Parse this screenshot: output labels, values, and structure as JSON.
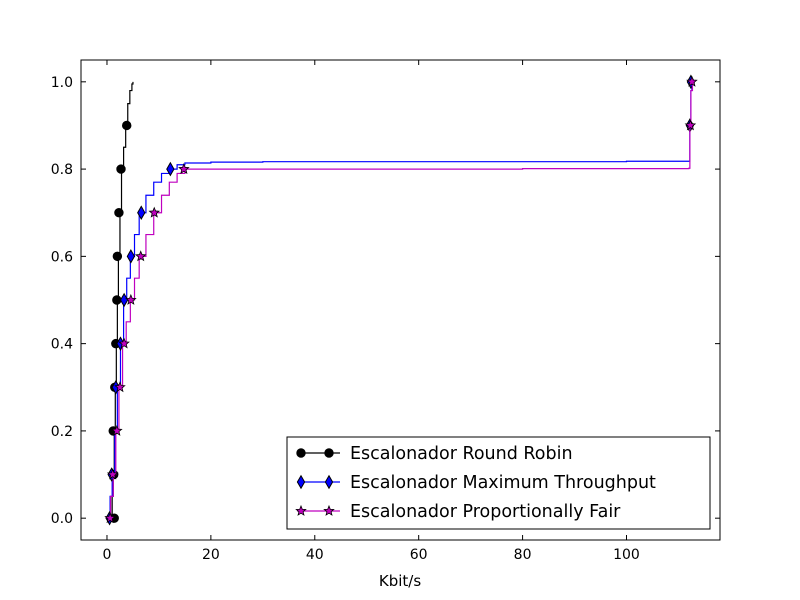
{
  "chart_data": {
    "type": "line",
    "xlabel": "Kbit/s",
    "ylabel": "",
    "xlim": [
      -5,
      118
    ],
    "ylim": [
      -0.05,
      1.05
    ],
    "x_ticks": [
      0,
      20,
      40,
      60,
      80,
      100
    ],
    "x_tick_labels": [
      "0",
      "20",
      "40",
      "60",
      "80",
      "100"
    ],
    "y_ticks": [
      0.0,
      0.2,
      0.4,
      0.6,
      0.8,
      1.0
    ],
    "y_tick_labels": [
      "0.0",
      "0.2",
      "0.4",
      "0.6",
      "0.8",
      "1.0"
    ],
    "grid": false,
    "legend_position": "lower-right",
    "series": [
      {
        "name": "Escalonador Round Robin",
        "color": "#000000",
        "marker": "circle",
        "x": [
          0.8,
          1.0,
          1.2,
          1.4,
          1.6,
          1.8,
          2.0,
          2.2,
          2.5,
          2.8,
          3.2,
          3.6,
          4.0,
          4.4,
          4.8,
          5.0
        ],
        "y": [
          0.0,
          0.05,
          0.1,
          0.2,
          0.3,
          0.4,
          0.5,
          0.6,
          0.7,
          0.8,
          0.85,
          0.9,
          0.95,
          0.98,
          0.995,
          1.0
        ],
        "marker_points": [
          {
            "x": 1.4,
            "y": 0.0
          },
          {
            "x": 1.3,
            "y": 0.1
          },
          {
            "x": 1.2,
            "y": 0.2
          },
          {
            "x": 1.5,
            "y": 0.3
          },
          {
            "x": 1.7,
            "y": 0.4
          },
          {
            "x": 1.9,
            "y": 0.5
          },
          {
            "x": 2.0,
            "y": 0.6
          },
          {
            "x": 2.3,
            "y": 0.7
          },
          {
            "x": 2.7,
            "y": 0.8
          },
          {
            "x": 3.8,
            "y": 0.9
          }
        ]
      },
      {
        "name": "Escalonador Maximum Throughput",
        "color": "#0000ff",
        "marker": "diamond",
        "x": [
          0.3,
          0.6,
          1.0,
          1.5,
          2.0,
          2.6,
          3.2,
          3.8,
          4.5,
          5.3,
          6.2,
          7.5,
          9.0,
          10.5,
          12.0,
          13.5,
          15.0,
          20.0,
          30.0,
          60.0,
          100.0,
          112.0,
          112.2,
          112.4,
          112.6
        ],
        "y": [
          0.0,
          0.05,
          0.1,
          0.2,
          0.3,
          0.4,
          0.5,
          0.55,
          0.6,
          0.65,
          0.7,
          0.74,
          0.77,
          0.79,
          0.8,
          0.81,
          0.814,
          0.816,
          0.817,
          0.817,
          0.818,
          0.818,
          0.9,
          0.98,
          1.0
        ],
        "marker_points": [
          {
            "x": 0.5,
            "y": 0.0
          },
          {
            "x": 0.9,
            "y": 0.1
          },
          {
            "x": 1.7,
            "y": 0.3
          },
          {
            "x": 2.6,
            "y": 0.4
          },
          {
            "x": 3.3,
            "y": 0.5
          },
          {
            "x": 4.6,
            "y": 0.6
          },
          {
            "x": 6.6,
            "y": 0.7
          },
          {
            "x": 12.2,
            "y": 0.8
          },
          {
            "x": 112.2,
            "y": 0.9
          },
          {
            "x": 112.4,
            "y": 1.0
          }
        ]
      },
      {
        "name": "Escalonador Proportionally Fair",
        "color": "#bf00bf",
        "marker": "star",
        "x": [
          0.3,
          0.7,
          1.2,
          1.7,
          2.3,
          3.0,
          3.7,
          4.5,
          5.3,
          6.2,
          7.5,
          9.0,
          10.5,
          12.0,
          13.5,
          15.0,
          20.0,
          40.0,
          80.0,
          112.0,
          112.2,
          112.4,
          112.7
        ],
        "y": [
          0.0,
          0.05,
          0.1,
          0.2,
          0.3,
          0.4,
          0.45,
          0.5,
          0.55,
          0.6,
          0.65,
          0.7,
          0.74,
          0.77,
          0.79,
          0.8,
          0.8,
          0.8,
          0.801,
          0.802,
          0.9,
          0.98,
          1.0
        ],
        "marker_points": [
          {
            "x": 0.6,
            "y": 0.0
          },
          {
            "x": 1.1,
            "y": 0.1
          },
          {
            "x": 1.9,
            "y": 0.2
          },
          {
            "x": 2.5,
            "y": 0.3
          },
          {
            "x": 3.3,
            "y": 0.4
          },
          {
            "x": 4.6,
            "y": 0.5
          },
          {
            "x": 6.5,
            "y": 0.6
          },
          {
            "x": 9.1,
            "y": 0.7
          },
          {
            "x": 14.8,
            "y": 0.8
          },
          {
            "x": 112.3,
            "y": 0.9
          },
          {
            "x": 112.6,
            "y": 1.0
          }
        ]
      }
    ]
  }
}
